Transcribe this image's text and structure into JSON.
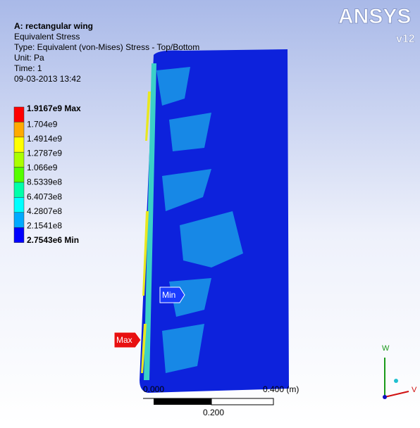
{
  "header": {
    "title": "A: rectangular wing",
    "lines": [
      "Equivalent Stress",
      "Type: Equivalent (von-Mises) Stress - Top/Bottom",
      "Unit: Pa",
      "Time: 1",
      "09-03-2013 13:42"
    ]
  },
  "legend": {
    "labels": [
      "1.9167e9 Max",
      "1.704e9",
      "1.4914e9",
      "1.2787e9",
      "1.066e9",
      "8.5339e8",
      "6.4073e8",
      "4.2807e8",
      "2.1541e8",
      "2.7543e6 Min"
    ]
  },
  "probes": {
    "min": "Min",
    "max": "Max"
  },
  "logo": {
    "name": "ANSYS",
    "version": "v12"
  },
  "scale": {
    "left": "0.000",
    "right": "0.400 (m)",
    "middle": "0.200"
  },
  "triad": {
    "w": "W",
    "v": "V"
  }
}
